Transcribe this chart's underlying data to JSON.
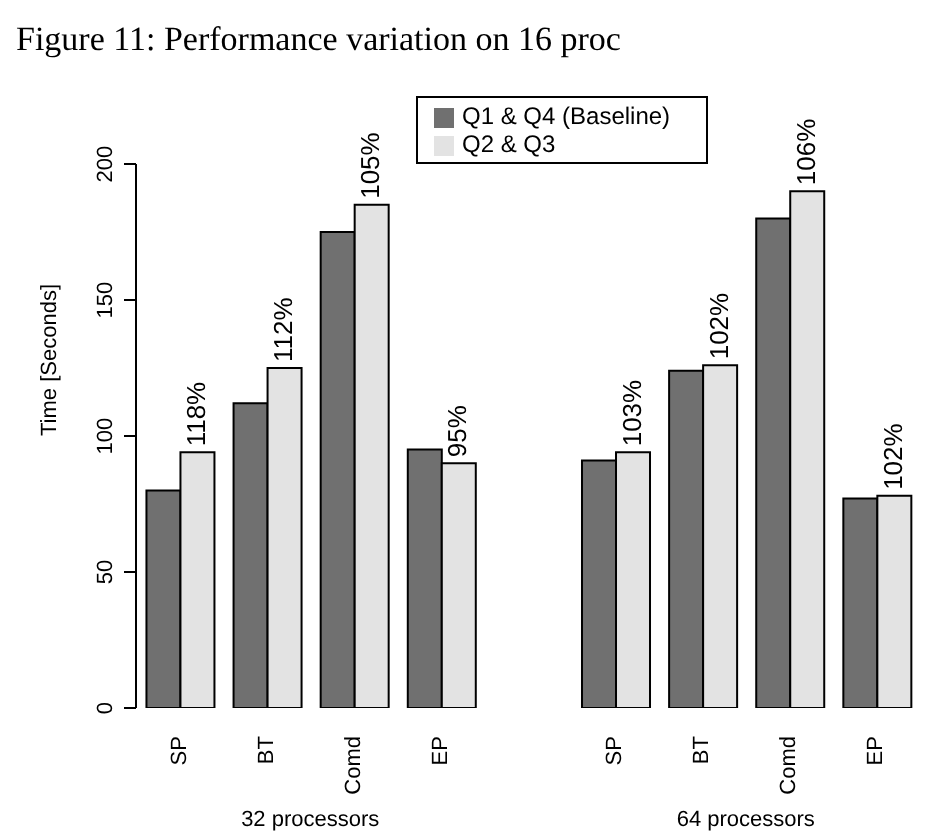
{
  "chart_data": {
    "type": "bar",
    "title": "Figure 11: Performance variation on 16 proc",
    "ylabel": "Time [Seconds]",
    "categories": [
      "SP",
      "BT",
      "Comd",
      "EP",
      null,
      "SP",
      "BT",
      "Comd",
      "EP"
    ],
    "series": [
      {
        "name": "Q1 & Q4 (Baseline)",
        "color": "#707070",
        "values": [
          80,
          112,
          175,
          95,
          null,
          91,
          124,
          180,
          77
        ]
      },
      {
        "name": "Q2 & Q3",
        "color": "#e3e3e3",
        "values": [
          94,
          125,
          185,
          90,
          null,
          94,
          126,
          190,
          78
        ]
      }
    ],
    "ylim": [
      0,
      200
    ],
    "yticks": [
      0,
      50,
      100,
      150,
      200
    ],
    "grid": false,
    "legend": "top",
    "annotations": [
      "32 processors",
      "64 processors",
      {
        "text": "118%",
        "x": "SP",
        "y": 94
      },
      {
        "text": "112%",
        "x": "BT",
        "y": 125
      },
      {
        "text": "105%",
        "x": "Comd",
        "y": 185
      },
      {
        "text": "95%",
        "x": "EP",
        "y": 90
      },
      "103%",
      "102%",
      "106%",
      "102%"
    ]
  }
}
